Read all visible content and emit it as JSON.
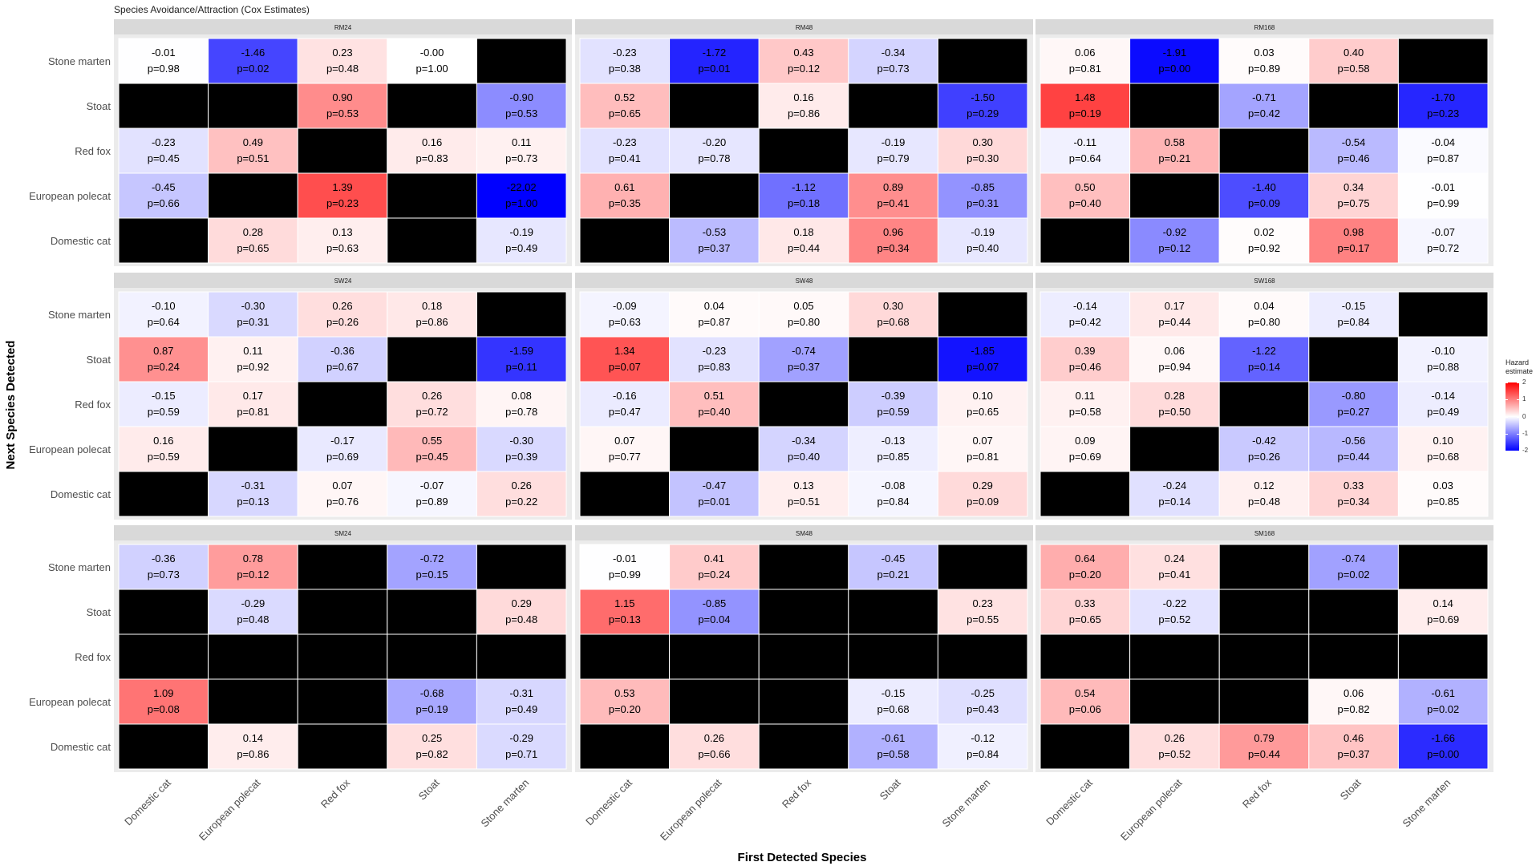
{
  "chart_data": {
    "type": "heatmap",
    "title": "Species Avoidance/Attraction (Cox Estimates)",
    "xlabel": "First Detected Species",
    "ylabel": "Next Species Detected",
    "x_categories": [
      "Domestic cat",
      "European polecat",
      "Red fox",
      "Stoat",
      "Stone marten"
    ],
    "y_categories": [
      "Stone marten",
      "Stoat",
      "Red fox",
      "European polecat",
      "Domestic cat"
    ],
    "legend": {
      "title": "Hazard estimate",
      "ticks": [
        2,
        1,
        0,
        -1,
        -2
      ],
      "placement": "right"
    },
    "color_scale": {
      "low": "#0000ff",
      "mid": "#ffffff",
      "high": "#ff0000",
      "limits": [
        -2,
        2
      ],
      "na_color": "#000000"
    },
    "panels": [
      {
        "name": "RM24",
        "cells": [
          [
            {
              "e": "-0.01",
              "p": "p=0.98"
            },
            {
              "e": "-1.46",
              "p": "p=0.02"
            },
            {
              "e": "0.23",
              "p": "p=0.48"
            },
            {
              "e": "-0.00",
              "p": "p=1.00"
            },
            null
          ],
          [
            null,
            null,
            {
              "e": "0.90",
              "p": "p=0.53"
            },
            null,
            {
              "e": "-0.90",
              "p": "p=0.53"
            }
          ],
          [
            {
              "e": "-0.23",
              "p": "p=0.45"
            },
            {
              "e": "0.49",
              "p": "p=0.51"
            },
            null,
            {
              "e": "0.16",
              "p": "p=0.83"
            },
            {
              "e": "0.11",
              "p": "p=0.73"
            }
          ],
          [
            {
              "e": "-0.45",
              "p": "p=0.66"
            },
            null,
            {
              "e": "1.39",
              "p": "p=0.23"
            },
            null,
            {
              "e": "-22.02",
              "p": "p=1.00"
            }
          ],
          [
            null,
            {
              "e": "0.28",
              "p": "p=0.65"
            },
            {
              "e": "0.13",
              "p": "p=0.63"
            },
            null,
            {
              "e": "-0.19",
              "p": "p=0.49"
            }
          ]
        ]
      },
      {
        "name": "RM48",
        "cells": [
          [
            {
              "e": "-0.23",
              "p": "p=0.38"
            },
            {
              "e": "-1.72",
              "p": "p=0.01"
            },
            {
              "e": "0.43",
              "p": "p=0.12"
            },
            {
              "e": "-0.34",
              "p": "p=0.73"
            },
            null
          ],
          [
            {
              "e": "0.52",
              "p": "p=0.65"
            },
            null,
            {
              "e": "0.16",
              "p": "p=0.86"
            },
            null,
            {
              "e": "-1.50",
              "p": "p=0.29"
            }
          ],
          [
            {
              "e": "-0.23",
              "p": "p=0.41"
            },
            {
              "e": "-0.20",
              "p": "p=0.78"
            },
            null,
            {
              "e": "-0.19",
              "p": "p=0.79"
            },
            {
              "e": "0.30",
              "p": "p=0.30"
            }
          ],
          [
            {
              "e": "0.61",
              "p": "p=0.35"
            },
            null,
            {
              "e": "-1.12",
              "p": "p=0.18"
            },
            {
              "e": "0.89",
              "p": "p=0.41"
            },
            {
              "e": "-0.85",
              "p": "p=0.31"
            }
          ],
          [
            null,
            {
              "e": "-0.53",
              "p": "p=0.37"
            },
            {
              "e": "0.18",
              "p": "p=0.44"
            },
            {
              "e": "0.96",
              "p": "p=0.34"
            },
            {
              "e": "-0.19",
              "p": "p=0.40"
            }
          ]
        ]
      },
      {
        "name": "RM168",
        "cells": [
          [
            {
              "e": "0.06",
              "p": "p=0.81"
            },
            {
              "e": "-1.91",
              "p": "p=0.00"
            },
            {
              "e": "0.03",
              "p": "p=0.89"
            },
            {
              "e": "0.40",
              "p": "p=0.58"
            },
            null
          ],
          [
            {
              "e": "1.48",
              "p": "p=0.19"
            },
            null,
            {
              "e": "-0.71",
              "p": "p=0.42"
            },
            null,
            {
              "e": "-1.70",
              "p": "p=0.23"
            }
          ],
          [
            {
              "e": "-0.11",
              "p": "p=0.64"
            },
            {
              "e": "0.58",
              "p": "p=0.21"
            },
            null,
            {
              "e": "-0.54",
              "p": "p=0.46"
            },
            {
              "e": "-0.04",
              "p": "p=0.87"
            }
          ],
          [
            {
              "e": "0.50",
              "p": "p=0.40"
            },
            null,
            {
              "e": "-1.40",
              "p": "p=0.09"
            },
            {
              "e": "0.34",
              "p": "p=0.75"
            },
            {
              "e": "-0.01",
              "p": "p=0.99"
            }
          ],
          [
            null,
            {
              "e": "-0.92",
              "p": "p=0.12"
            },
            {
              "e": "0.02",
              "p": "p=0.92"
            },
            {
              "e": "0.98",
              "p": "p=0.17"
            },
            {
              "e": "-0.07",
              "p": "p=0.72"
            }
          ]
        ]
      },
      {
        "name": "SW24",
        "cells": [
          [
            {
              "e": "-0.10",
              "p": "p=0.64"
            },
            {
              "e": "-0.30",
              "p": "p=0.31"
            },
            {
              "e": "0.26",
              "p": "p=0.26"
            },
            {
              "e": "0.18",
              "p": "p=0.86"
            },
            null
          ],
          [
            {
              "e": "0.87",
              "p": "p=0.24"
            },
            {
              "e": "0.11",
              "p": "p=0.92"
            },
            {
              "e": "-0.36",
              "p": "p=0.67"
            },
            null,
            {
              "e": "-1.59",
              "p": "p=0.11"
            }
          ],
          [
            {
              "e": "-0.15",
              "p": "p=0.59"
            },
            {
              "e": "0.17",
              "p": "p=0.81"
            },
            null,
            {
              "e": "0.26",
              "p": "p=0.72"
            },
            {
              "e": "0.08",
              "p": "p=0.78"
            }
          ],
          [
            {
              "e": "0.16",
              "p": "p=0.59"
            },
            null,
            {
              "e": "-0.17",
              "p": "p=0.69"
            },
            {
              "e": "0.55",
              "p": "p=0.45"
            },
            {
              "e": "-0.30",
              "p": "p=0.39"
            }
          ],
          [
            null,
            {
              "e": "-0.31",
              "p": "p=0.13"
            },
            {
              "e": "0.07",
              "p": "p=0.76"
            },
            {
              "e": "-0.07",
              "p": "p=0.89"
            },
            {
              "e": "0.26",
              "p": "p=0.22"
            }
          ]
        ]
      },
      {
        "name": "SW48",
        "cells": [
          [
            {
              "e": "-0.09",
              "p": "p=0.63"
            },
            {
              "e": "0.04",
              "p": "p=0.87"
            },
            {
              "e": "0.05",
              "p": "p=0.80"
            },
            {
              "e": "0.30",
              "p": "p=0.68"
            },
            null
          ],
          [
            {
              "e": "1.34",
              "p": "p=0.07"
            },
            {
              "e": "-0.23",
              "p": "p=0.83"
            },
            {
              "e": "-0.74",
              "p": "p=0.37"
            },
            null,
            {
              "e": "-1.85",
              "p": "p=0.07"
            }
          ],
          [
            {
              "e": "-0.16",
              "p": "p=0.47"
            },
            {
              "e": "0.51",
              "p": "p=0.40"
            },
            null,
            {
              "e": "-0.39",
              "p": "p=0.59"
            },
            {
              "e": "0.10",
              "p": "p=0.65"
            }
          ],
          [
            {
              "e": "0.07",
              "p": "p=0.77"
            },
            null,
            {
              "e": "-0.34",
              "p": "p=0.40"
            },
            {
              "e": "-0.13",
              "p": "p=0.85"
            },
            {
              "e": "0.07",
              "p": "p=0.81"
            }
          ],
          [
            null,
            {
              "e": "-0.47",
              "p": "p=0.01"
            },
            {
              "e": "0.13",
              "p": "p=0.51"
            },
            {
              "e": "-0.08",
              "p": "p=0.84"
            },
            {
              "e": "0.29",
              "p": "p=0.09"
            }
          ]
        ]
      },
      {
        "name": "SW168",
        "cells": [
          [
            {
              "e": "-0.14",
              "p": "p=0.42"
            },
            {
              "e": "0.17",
              "p": "p=0.44"
            },
            {
              "e": "0.04",
              "p": "p=0.80"
            },
            {
              "e": "-0.15",
              "p": "p=0.84"
            },
            null
          ],
          [
            {
              "e": "0.39",
              "p": "p=0.46"
            },
            {
              "e": "0.06",
              "p": "p=0.94"
            },
            {
              "e": "-1.22",
              "p": "p=0.14"
            },
            null,
            {
              "e": "-0.10",
              "p": "p=0.88"
            }
          ],
          [
            {
              "e": "0.11",
              "p": "p=0.58"
            },
            {
              "e": "0.28",
              "p": "p=0.50"
            },
            null,
            {
              "e": "-0.80",
              "p": "p=0.27"
            },
            {
              "e": "-0.14",
              "p": "p=0.49"
            }
          ],
          [
            {
              "e": "0.09",
              "p": "p=0.69"
            },
            null,
            {
              "e": "-0.42",
              "p": "p=0.26"
            },
            {
              "e": "-0.56",
              "p": "p=0.44"
            },
            {
              "e": "0.10",
              "p": "p=0.68"
            }
          ],
          [
            null,
            {
              "e": "-0.24",
              "p": "p=0.14"
            },
            {
              "e": "0.12",
              "p": "p=0.48"
            },
            {
              "e": "0.33",
              "p": "p=0.34"
            },
            {
              "e": "0.03",
              "p": "p=0.85"
            }
          ]
        ]
      },
      {
        "name": "SM24",
        "cells": [
          [
            {
              "e": "-0.36",
              "p": "p=0.73"
            },
            {
              "e": "0.78",
              "p": "p=0.12"
            },
            null,
            {
              "e": "-0.72",
              "p": "p=0.15"
            },
            null
          ],
          [
            null,
            {
              "e": "-0.29",
              "p": "p=0.48"
            },
            null,
            null,
            {
              "e": "0.29",
              "p": "p=0.48"
            }
          ],
          [
            null,
            null,
            null,
            null,
            null
          ],
          [
            {
              "e": "1.09",
              "p": "p=0.08"
            },
            null,
            null,
            {
              "e": "-0.68",
              "p": "p=0.19"
            },
            {
              "e": "-0.31",
              "p": "p=0.49"
            }
          ],
          [
            null,
            {
              "e": "0.14",
              "p": "p=0.86"
            },
            null,
            {
              "e": "0.25",
              "p": "p=0.82"
            },
            {
              "e": "-0.29",
              "p": "p=0.71"
            }
          ]
        ]
      },
      {
        "name": "SM48",
        "cells": [
          [
            {
              "e": "-0.01",
              "p": "p=0.99"
            },
            {
              "e": "0.41",
              "p": "p=0.24"
            },
            null,
            {
              "e": "-0.45",
              "p": "p=0.21"
            },
            null
          ],
          [
            {
              "e": "1.15",
              "p": "p=0.13"
            },
            {
              "e": "-0.85",
              "p": "p=0.04"
            },
            null,
            null,
            {
              "e": "0.23",
              "p": "p=0.55"
            }
          ],
          [
            null,
            null,
            null,
            null,
            null
          ],
          [
            {
              "e": "0.53",
              "p": "p=0.20"
            },
            null,
            null,
            {
              "e": "-0.15",
              "p": "p=0.68"
            },
            {
              "e": "-0.25",
              "p": "p=0.43"
            }
          ],
          [
            null,
            {
              "e": "0.26",
              "p": "p=0.66"
            },
            null,
            {
              "e": "-0.61",
              "p": "p=0.58"
            },
            {
              "e": "-0.12",
              "p": "p=0.84"
            }
          ]
        ]
      },
      {
        "name": "SM168",
        "cells": [
          [
            {
              "e": "0.64",
              "p": "p=0.20"
            },
            {
              "e": "0.24",
              "p": "p=0.41"
            },
            null,
            {
              "e": "-0.74",
              "p": "p=0.02"
            },
            null
          ],
          [
            {
              "e": "0.33",
              "p": "p=0.65"
            },
            {
              "e": "-0.22",
              "p": "p=0.52"
            },
            null,
            null,
            {
              "e": "0.14",
              "p": "p=0.69"
            }
          ],
          [
            null,
            null,
            null,
            null,
            null
          ],
          [
            {
              "e": "0.54",
              "p": "p=0.06"
            },
            null,
            null,
            {
              "e": "0.06",
              "p": "p=0.82"
            },
            {
              "e": "-0.61",
              "p": "p=0.02"
            }
          ],
          [
            null,
            {
              "e": "0.26",
              "p": "p=0.52"
            },
            {
              "e": "0.79",
              "p": "p=0.44"
            },
            {
              "e": "0.46",
              "p": "p=0.37"
            },
            {
              "e": "-1.66",
              "p": "p=0.00"
            }
          ]
        ]
      }
    ]
  }
}
